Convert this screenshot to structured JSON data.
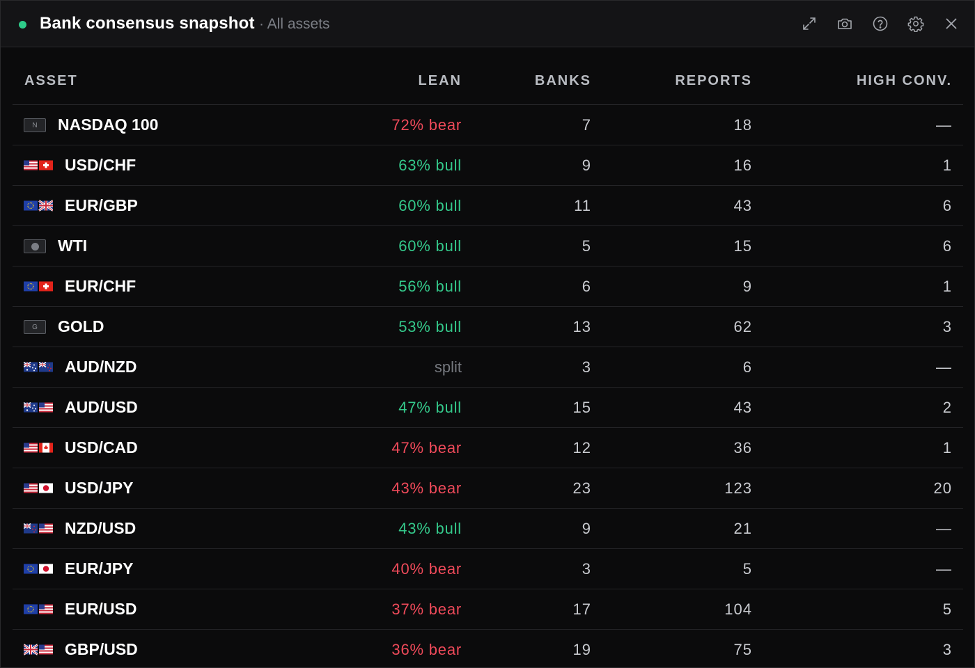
{
  "window": {
    "title": "Bank consensus snapshot",
    "subtitle": "· All assets",
    "status_color": "#2ecc8a",
    "toolbar_icons": [
      "expand-icon",
      "camera-icon",
      "help-icon",
      "settings-icon",
      "close-icon"
    ]
  },
  "colors": {
    "bear": "#ef4a5a",
    "bull": "#34c98b",
    "split": "#75787e"
  },
  "table": {
    "headers": {
      "asset": "ASSET",
      "lean": "LEAN",
      "banks": "BANKS",
      "reports": "REPORTS",
      "high_conv": "HIGH CONV."
    },
    "rows": [
      {
        "asset": "NASDAQ 100",
        "icon": "badge",
        "badge": "N",
        "lean": "72% bear",
        "tone": "bear",
        "banks": "7",
        "reports": "18",
        "high_conv": "—"
      },
      {
        "asset": "USD/CHF",
        "icon": "flags",
        "flags": [
          "us",
          "ch"
        ],
        "lean": "63% bull",
        "tone": "bull",
        "banks": "9",
        "reports": "16",
        "high_conv": "1"
      },
      {
        "asset": "EUR/GBP",
        "icon": "flags",
        "flags": [
          "eu",
          "gb"
        ],
        "lean": "60% bull",
        "tone": "bull",
        "banks": "11",
        "reports": "43",
        "high_conv": "6"
      },
      {
        "asset": "WTI",
        "icon": "badge-dot",
        "lean": "60% bull",
        "tone": "bull",
        "banks": "5",
        "reports": "15",
        "high_conv": "6"
      },
      {
        "asset": "EUR/CHF",
        "icon": "flags",
        "flags": [
          "eu",
          "ch"
        ],
        "lean": "56% bull",
        "tone": "bull",
        "banks": "6",
        "reports": "9",
        "high_conv": "1"
      },
      {
        "asset": "GOLD",
        "icon": "badge",
        "badge": "G",
        "lean": "53% bull",
        "tone": "bull",
        "banks": "13",
        "reports": "62",
        "high_conv": "3"
      },
      {
        "asset": "AUD/NZD",
        "icon": "flags",
        "flags": [
          "au",
          "nz"
        ],
        "lean": "split",
        "tone": "split",
        "banks": "3",
        "reports": "6",
        "high_conv": "—"
      },
      {
        "asset": "AUD/USD",
        "icon": "flags",
        "flags": [
          "au",
          "us"
        ],
        "lean": "47% bull",
        "tone": "bull",
        "banks": "15",
        "reports": "43",
        "high_conv": "2"
      },
      {
        "asset": "USD/CAD",
        "icon": "flags",
        "flags": [
          "us",
          "ca"
        ],
        "lean": "47% bear",
        "tone": "bear",
        "banks": "12",
        "reports": "36",
        "high_conv": "1"
      },
      {
        "asset": "USD/JPY",
        "icon": "flags",
        "flags": [
          "us",
          "jp"
        ],
        "lean": "43% bear",
        "tone": "bear",
        "banks": "23",
        "reports": "123",
        "high_conv": "20"
      },
      {
        "asset": "NZD/USD",
        "icon": "flags",
        "flags": [
          "nz",
          "us"
        ],
        "lean": "43% bull",
        "tone": "bull",
        "banks": "9",
        "reports": "21",
        "high_conv": "—"
      },
      {
        "asset": "EUR/JPY",
        "icon": "flags",
        "flags": [
          "eu",
          "jp"
        ],
        "lean": "40% bear",
        "tone": "bear",
        "banks": "3",
        "reports": "5",
        "high_conv": "—"
      },
      {
        "asset": "EUR/USD",
        "icon": "flags",
        "flags": [
          "eu",
          "us"
        ],
        "lean": "37% bear",
        "tone": "bear",
        "banks": "17",
        "reports": "104",
        "high_conv": "5"
      },
      {
        "asset": "GBP/USD",
        "icon": "flags",
        "flags": [
          "gb",
          "us"
        ],
        "lean": "36% bear",
        "tone": "bear",
        "banks": "19",
        "reports": "75",
        "high_conv": "3"
      }
    ]
  }
}
